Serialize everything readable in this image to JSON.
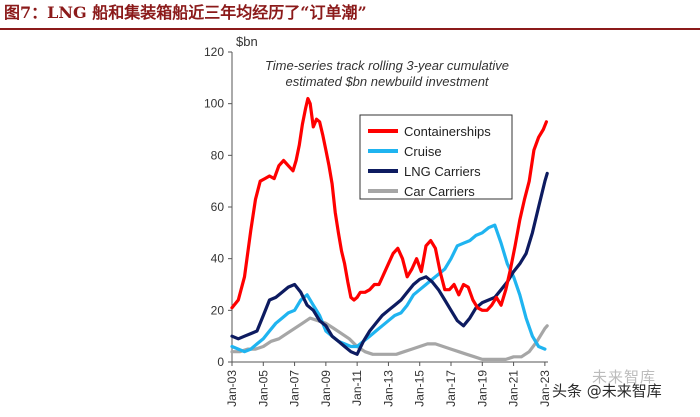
{
  "figure_title": "图7：LNG 船和集装箱船近三年均经历了“订单潮”",
  "watermark": "头条 @未来智库",
  "watermark_ghost": "未来智库",
  "chart_data": {
    "type": "line",
    "title": "Time-series track rolling 3-year cumulative estimated $bn newbuild investment",
    "title_lines": [
      "Time-series track rolling 3-year cumulative",
      "estimated $bn newbuild investment"
    ],
    "ylabel": "$bn",
    "xlabel": "",
    "ylim": [
      0,
      120
    ],
    "yticks": [
      0,
      20,
      40,
      60,
      80,
      100,
      120
    ],
    "xlim": [
      2003,
      2023.2
    ],
    "xticks": [
      "Jan-03",
      "Jan-05",
      "Jan-07",
      "Jan-09",
      "Jan-11",
      "Jan-13",
      "Jan-15",
      "Jan-17",
      "Jan-19",
      "Jan-21",
      "Jan-23"
    ],
    "xtick_values": [
      2003,
      2005,
      2007,
      2009,
      2011,
      2013,
      2015,
      2017,
      2019,
      2021,
      2023
    ],
    "grid": false,
    "legend_position": "center-right",
    "series": [
      {
        "name": "Containerships",
        "color": "#ff0000",
        "x": [
          2003,
          2003.4,
          2003.8,
          2004.2,
          2004.5,
          2004.8,
          2005.1,
          2005.4,
          2005.7,
          2006.0,
          2006.3,
          2006.6,
          2006.9,
          2007.1,
          2007.3,
          2007.5,
          2007.7,
          2007.85,
          2008.0,
          2008.2,
          2008.4,
          2008.6,
          2008.8,
          2009.0,
          2009.2,
          2009.4,
          2009.6,
          2009.8,
          2010.0,
          2010.2,
          2010.4,
          2010.6,
          2010.8,
          2011.0,
          2011.2,
          2011.5,
          2011.8,
          2012.1,
          2012.4,
          2012.7,
          2013.0,
          2013.3,
          2013.6,
          2013.9,
          2014.2,
          2014.5,
          2014.8,
          2015.1,
          2015.4,
          2015.7,
          2016.0,
          2016.3,
          2016.6,
          2016.9,
          2017.2,
          2017.5,
          2017.8,
          2018.1,
          2018.4,
          2018.7,
          2019.0,
          2019.3,
          2019.6,
          2019.9,
          2020.2,
          2020.5,
          2020.8,
          2021.1,
          2021.4,
          2021.7,
          2022.0,
          2022.3,
          2022.6,
          2022.9,
          2023.1
        ],
        "values": [
          21,
          24,
          33,
          51,
          63,
          70,
          71,
          72,
          71,
          76,
          78,
          76,
          74,
          78,
          84,
          92,
          98,
          102,
          100,
          91,
          94,
          93,
          88,
          82,
          76,
          69,
          58,
          50,
          43,
          38,
          31,
          25,
          24,
          25,
          27,
          27,
          28,
          30,
          30,
          34,
          38,
          42,
          44,
          40,
          33,
          36,
          40,
          35,
          45,
          47,
          44,
          35,
          28,
          28,
          30,
          26,
          30,
          29,
          24,
          21,
          20,
          20,
          22,
          25,
          22,
          28,
          36,
          45,
          55,
          63,
          70,
          82,
          87,
          90,
          93
        ]
      },
      {
        "name": "Cruise",
        "color": "#1fb4f0",
        "x": [
          2003,
          2003.4,
          2003.8,
          2004.2,
          2004.6,
          2005.0,
          2005.4,
          2005.8,
          2006.2,
          2006.6,
          2007.0,
          2007.4,
          2007.8,
          2008.2,
          2008.6,
          2009.0,
          2009.4,
          2009.8,
          2010.2,
          2010.6,
          2011.0,
          2011.4,
          2011.8,
          2012.2,
          2012.6,
          2013.0,
          2013.4,
          2013.8,
          2014.2,
          2014.6,
          2015.0,
          2015.4,
          2015.8,
          2016.2,
          2016.6,
          2017.0,
          2017.4,
          2017.8,
          2018.2,
          2018.6,
          2019.0,
          2019.4,
          2019.8,
          2020.2,
          2020.6,
          2021.0,
          2021.4,
          2021.8,
          2022.2,
          2022.6,
          2023.0
        ],
        "values": [
          6,
          5,
          4,
          5,
          7,
          9,
          12,
          15,
          17,
          19,
          20,
          24,
          26,
          22,
          18,
          12,
          10,
          8,
          7,
          6,
          6,
          8,
          10,
          12,
          14,
          16,
          18,
          19,
          22,
          26,
          28,
          30,
          32,
          34,
          36,
          40,
          45,
          46,
          47,
          49,
          50,
          52,
          53,
          46,
          38,
          33,
          26,
          17,
          10,
          6,
          5
        ]
      },
      {
        "name": "LNG Carriers",
        "color": "#0d1b60",
        "x": [
          2003,
          2003.4,
          2003.8,
          2004.2,
          2004.6,
          2005.0,
          2005.4,
          2005.8,
          2006.2,
          2006.6,
          2007.0,
          2007.4,
          2007.8,
          2008.2,
          2008.6,
          2009.0,
          2009.4,
          2009.8,
          2010.2,
          2010.6,
          2011.0,
          2011.4,
          2011.8,
          2012.2,
          2012.6,
          2013.0,
          2013.4,
          2013.8,
          2014.2,
          2014.6,
          2015.0,
          2015.4,
          2015.8,
          2016.2,
          2016.6,
          2017.0,
          2017.4,
          2017.8,
          2018.2,
          2018.6,
          2019.0,
          2019.4,
          2019.8,
          2020.2,
          2020.6,
          2021.0,
          2021.4,
          2021.8,
          2022.2,
          2022.6,
          2023.0,
          2023.15
        ],
        "values": [
          10,
          9,
          10,
          11,
          12,
          18,
          24,
          25,
          27,
          29,
          30,
          27,
          22,
          20,
          16,
          14,
          10,
          8,
          6,
          4,
          3,
          8,
          12,
          15,
          18,
          20,
          22,
          24,
          27,
          30,
          32,
          33,
          31,
          28,
          24,
          20,
          16,
          14,
          17,
          21,
          23,
          24,
          25,
          28,
          31,
          35,
          38,
          42,
          50,
          60,
          70,
          73
        ]
      },
      {
        "name": "Car Carriers",
        "color": "#a6a6a6",
        "x": [
          2003,
          2003.5,
          2004.0,
          2004.5,
          2005.0,
          2005.5,
          2006.0,
          2006.5,
          2007.0,
          2007.5,
          2008.0,
          2008.5,
          2009.0,
          2009.5,
          2010.0,
          2010.5,
          2011.0,
          2011.5,
          2012.0,
          2012.5,
          2013.0,
          2013.5,
          2014.0,
          2014.5,
          2015.0,
          2015.5,
          2016.0,
          2016.5,
          2017.0,
          2017.5,
          2018.0,
          2018.5,
          2019.0,
          2019.5,
          2020.0,
          2020.5,
          2021.0,
          2021.5,
          2022.0,
          2022.5,
          2023.0,
          2023.15
        ],
        "values": [
          4,
          4,
          5,
          5,
          6,
          8,
          9,
          11,
          13,
          15,
          17,
          16,
          15,
          13,
          11,
          9,
          6,
          4,
          3,
          3,
          3,
          3,
          4,
          5,
          6,
          7,
          7,
          6,
          5,
          4,
          3,
          2,
          1,
          1,
          1,
          1,
          2,
          2,
          4,
          8,
          13,
          14
        ]
      }
    ]
  }
}
